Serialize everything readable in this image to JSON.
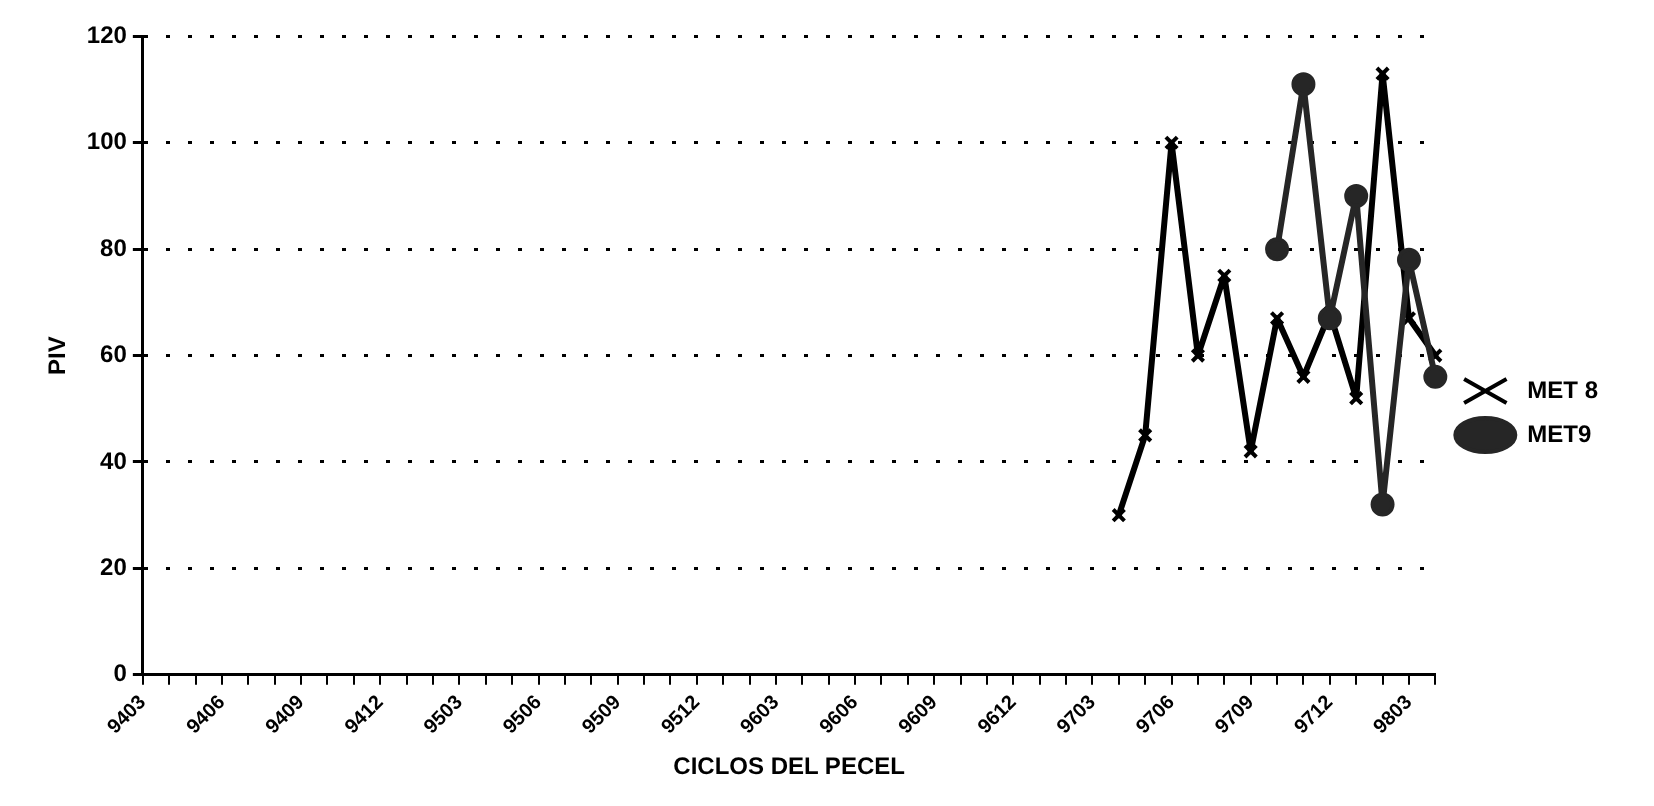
{
  "chart_data": {
    "type": "line",
    "xlabel": "CICLOS DEL PECEL",
    "ylabel": "PIV",
    "categories": [
      "9403",
      null,
      null,
      "9406",
      null,
      null,
      "9409",
      null,
      null,
      "9412",
      null,
      null,
      "9503",
      null,
      null,
      "9506",
      null,
      null,
      "9509",
      null,
      null,
      "9512",
      null,
      null,
      "9603",
      null,
      null,
      "9606",
      null,
      null,
      "9609",
      null,
      null,
      "9612",
      null,
      null,
      "9703",
      null,
      null,
      "9706",
      null,
      null,
      "9709",
      null,
      null,
      "9712",
      null,
      null,
      "9803",
      null
    ],
    "series": [
      {
        "name": "MET 8",
        "color": "#000000",
        "marker": "cross",
        "values": [
          null,
          null,
          null,
          null,
          null,
          null,
          null,
          null,
          null,
          null,
          null,
          null,
          null,
          null,
          null,
          null,
          null,
          null,
          null,
          null,
          null,
          null,
          null,
          null,
          null,
          null,
          null,
          null,
          null,
          null,
          null,
          null,
          null,
          null,
          null,
          null,
          null,
          30,
          45,
          100,
          60,
          75,
          42,
          67,
          56,
          68,
          52,
          113,
          67,
          60
        ]
      },
      {
        "name": "MET9",
        "color": "#262626",
        "marker": "circle",
        "values": [
          null,
          null,
          null,
          null,
          null,
          null,
          null,
          null,
          null,
          null,
          null,
          null,
          null,
          null,
          null,
          null,
          null,
          null,
          null,
          null,
          null,
          null,
          null,
          null,
          null,
          null,
          null,
          null,
          null,
          null,
          null,
          null,
          null,
          null,
          null,
          null,
          null,
          null,
          null,
          null,
          null,
          null,
          null,
          80,
          111,
          67,
          90,
          32,
          78,
          56
        ]
      }
    ],
    "ylim": [
      0,
      120
    ],
    "yticks": [
      0,
      20,
      40,
      60,
      80,
      100,
      120
    ],
    "grid": "y",
    "legend": "right",
    "line_style": "solid"
  }
}
